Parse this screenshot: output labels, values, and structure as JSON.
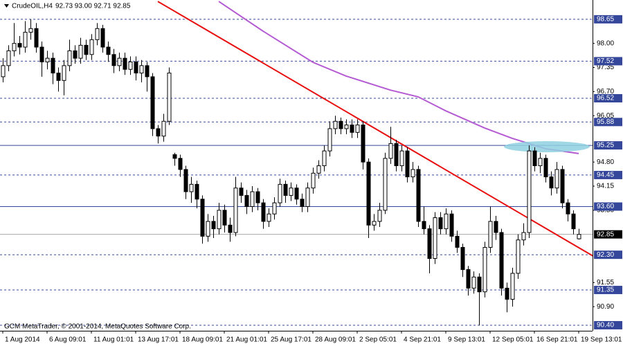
{
  "chart_data": {
    "type": "candlestick",
    "title": "CrudeOIL,H4",
    "quote": "92.73 93.00 92.71 92.85",
    "footer": "GCM MetaTrader, © 2001-2014, MetaQuotes Software Corp.",
    "xlim": [
      -0.5,
      106.5
    ],
    "ylim": [
      90.25,
      99.17
    ],
    "xticks": [
      {
        "value": 0,
        "label": "1 Aug 2014"
      },
      {
        "value": 8,
        "label": "6 Aug 09:01"
      },
      {
        "value": 16,
        "label": "11 Aug 01:01"
      },
      {
        "value": 24,
        "label": "13 Aug 17:01"
      },
      {
        "value": 32,
        "label": "18 Aug 09:01"
      },
      {
        "value": 40,
        "label": "21 Aug 01:01"
      },
      {
        "value": 48,
        "label": "25 Aug 17:01"
      },
      {
        "value": 56,
        "label": "28 Aug 09:01"
      },
      {
        "value": 64,
        "label": "2 Sep 05:01"
      },
      {
        "value": 72,
        "label": "4 Sep 21:01"
      },
      {
        "value": 80,
        "label": "9 Sep 13:01"
      },
      {
        "value": 88,
        "label": "12 Sep 05:01"
      },
      {
        "value": 96,
        "label": "16 Sep 21:01"
      },
      {
        "value": 104,
        "label": "19 Sep 13:01"
      }
    ],
    "yticks": [
      {
        "value": 98,
        "label": "98.00"
      },
      97.35,
      {
        "value": 96.7,
        "label": "96.70"
      },
      96.05,
      {
        "value": 94.8,
        "label": "94.80"
      },
      94.15,
      {
        "value": 93.5,
        "label": "93.50"
      },
      91.55,
      {
        "value": 90.9,
        "label": "90.90"
      }
    ],
    "dashed_levels": [
      98.65,
      97.52,
      96.52,
      95.88,
      94.45,
      {
        "value": 92.3,
        "label": "92.30"
      },
      91.35,
      {
        "value": 90.4,
        "label": "90.40"
      }
    ],
    "solid_levels": [
      95.25,
      {
        "value": 93.6,
        "label": "93.60"
      }
    ],
    "level_color": "#34479a",
    "last_price": 92.85,
    "up_color": "#ffffff",
    "down_color": "#000000",
    "open": [
      97.1,
      97.4,
      97.8,
      98.0,
      97.9,
      98.3,
      98.4,
      97.9,
      97.5,
      97.6,
      97.2,
      97.0,
      97.4,
      97.8,
      97.6,
      97.95,
      97.7,
      98.1,
      98.4,
      97.9,
      97.7,
      97.4,
      97.6,
      97.3,
      97.5,
      97.2,
      97.4,
      97.1,
      95.7,
      95.5,
      95.9,
      95.0,
      94.9,
      94.6,
      94.0,
      94.2,
      93.8,
      92.8,
      93.2,
      93.0,
      93.5,
      93.1,
      92.9,
      94.1,
      93.9,
      93.6,
      94.0,
      93.7,
      93.2,
      93.4,
      93.7,
      94.2,
      93.9,
      94.1,
      93.8,
      93.6,
      94.1,
      94.5,
      94.7,
      95.1,
      95.7,
      95.9,
      95.7,
      95.8,
      95.6,
      95.8,
      94.8,
      93.1,
      93.2,
      93.5,
      94.9,
      95.3,
      94.7,
      95.1,
      94.4,
      94.6,
      93.2,
      93.0,
      92.2,
      93.3,
      93.0,
      93.4,
      92.8,
      92.5,
      91.9,
      91.4,
      91.7,
      91.3,
      92.5,
      93.2,
      92.9,
      91.4,
      91.1,
      91.8,
      92.7,
      92.9,
      95.1,
      94.7,
      94.9,
      94.4,
      94.1,
      94.6,
      93.7,
      93.4,
      92.73
    ],
    "high": [
      97.6,
      97.95,
      98.55,
      98.2,
      98.6,
      98.65,
      98.55,
      98.05,
      97.8,
      97.75,
      97.35,
      97.55,
      98.1,
      97.95,
      98.15,
      98.1,
      98.25,
      98.55,
      98.5,
      98.05,
      97.85,
      97.75,
      97.75,
      97.65,
      97.65,
      97.55,
      97.5,
      97.2,
      95.8,
      96.1,
      97.35,
      95.05,
      95.0,
      94.7,
      94.4,
      94.3,
      93.9,
      93.4,
      93.35,
      93.7,
      93.65,
      93.3,
      94.4,
      94.25,
      94.05,
      94.15,
      94.1,
      93.8,
      93.55,
      93.85,
      94.35,
      94.3,
      94.25,
      94.2,
      93.95,
      94.25,
      94.65,
      94.85,
      95.25,
      95.9,
      96.05,
      96.0,
      95.95,
      95.95,
      95.95,
      95.9,
      94.9,
      93.4,
      93.7,
      95.05,
      95.75,
      95.4,
      95.25,
      95.2,
      94.8,
      94.7,
      93.6,
      93.1,
      93.45,
      93.45,
      93.55,
      93.5,
      92.95,
      92.6,
      92.0,
      91.85,
      91.8,
      92.65,
      93.6,
      93.35,
      93.0,
      91.55,
      91.95,
      92.85,
      93.15,
      95.25,
      95.2,
      95.05,
      95.0,
      94.55,
      94.8,
      94.7,
      93.8,
      93.5,
      93.0
    ],
    "low": [
      96.95,
      97.25,
      97.65,
      97.7,
      97.75,
      98.1,
      97.75,
      97.1,
      97.3,
      96.9,
      96.7,
      96.6,
      97.25,
      97.45,
      97.45,
      97.55,
      97.55,
      97.95,
      97.75,
      97.5,
      97.2,
      97.25,
      97.15,
      97.15,
      97.0,
      96.95,
      96.7,
      95.5,
      95.3,
      95.35,
      95.8,
      94.7,
      94.4,
      93.8,
      93.7,
      93.55,
      92.6,
      92.65,
      92.75,
      92.85,
      92.9,
      92.65,
      92.8,
      93.7,
      93.4,
      93.45,
      93.5,
      93.0,
      93.05,
      93.25,
      93.6,
      93.7,
      93.75,
      93.65,
      93.45,
      93.45,
      93.95,
      94.35,
      94.55,
      94.95,
      95.55,
      95.55,
      95.55,
      95.45,
      95.45,
      94.6,
      92.75,
      92.95,
      93.05,
      93.4,
      94.75,
      94.55,
      94.55,
      94.25,
      94.25,
      93.05,
      92.85,
      91.8,
      92.05,
      92.85,
      92.85,
      92.65,
      92.35,
      91.7,
      91.2,
      91.25,
      90.4,
      91.15,
      92.35,
      92.7,
      91.2,
      90.75,
      90.9,
      91.65,
      92.55,
      92.75,
      94.55,
      94.5,
      94.25,
      93.9,
      93.95,
      93.55,
      93.2,
      92.85,
      92.71
    ],
    "close": [
      97.4,
      97.8,
      98.0,
      97.9,
      98.3,
      98.4,
      97.9,
      97.5,
      97.6,
      97.2,
      97.0,
      97.4,
      97.8,
      97.6,
      97.95,
      97.7,
      98.1,
      98.4,
      97.9,
      97.7,
      97.4,
      97.6,
      97.3,
      97.5,
      97.2,
      97.4,
      97.1,
      95.7,
      95.5,
      95.9,
      97.2,
      94.9,
      94.6,
      94.0,
      94.2,
      93.8,
      92.8,
      93.2,
      93.0,
      93.5,
      93.1,
      92.9,
      94.1,
      93.9,
      93.6,
      94.0,
      93.7,
      93.2,
      93.4,
      93.7,
      94.2,
      93.9,
      94.1,
      93.8,
      93.6,
      94.1,
      94.5,
      94.7,
      95.1,
      95.7,
      95.9,
      95.7,
      95.8,
      95.6,
      95.8,
      94.8,
      93.1,
      93.2,
      93.5,
      94.9,
      95.3,
      94.7,
      95.1,
      94.4,
      94.6,
      93.2,
      93.0,
      92.2,
      93.3,
      93.0,
      93.4,
      92.8,
      92.5,
      91.9,
      91.4,
      91.7,
      91.3,
      92.5,
      93.2,
      92.9,
      91.4,
      91.1,
      91.8,
      92.7,
      92.9,
      95.1,
      94.7,
      94.9,
      94.4,
      94.1,
      94.6,
      93.7,
      93.4,
      93.0,
      92.85
    ],
    "moving_average": {
      "color": "#b45ad2",
      "x": [
        39,
        47,
        56,
        62,
        70,
        75,
        80,
        87,
        92,
        98,
        104
      ],
      "values": [
        99.13,
        98.33,
        97.49,
        97.12,
        96.74,
        96.56,
        96.18,
        95.72,
        95.44,
        95.16,
        95.03
      ]
    },
    "trendline": {
      "color": "#e81010",
      "x": [
        28,
        107
      ],
      "values": [
        99.13,
        92.23
      ]
    }
  }
}
